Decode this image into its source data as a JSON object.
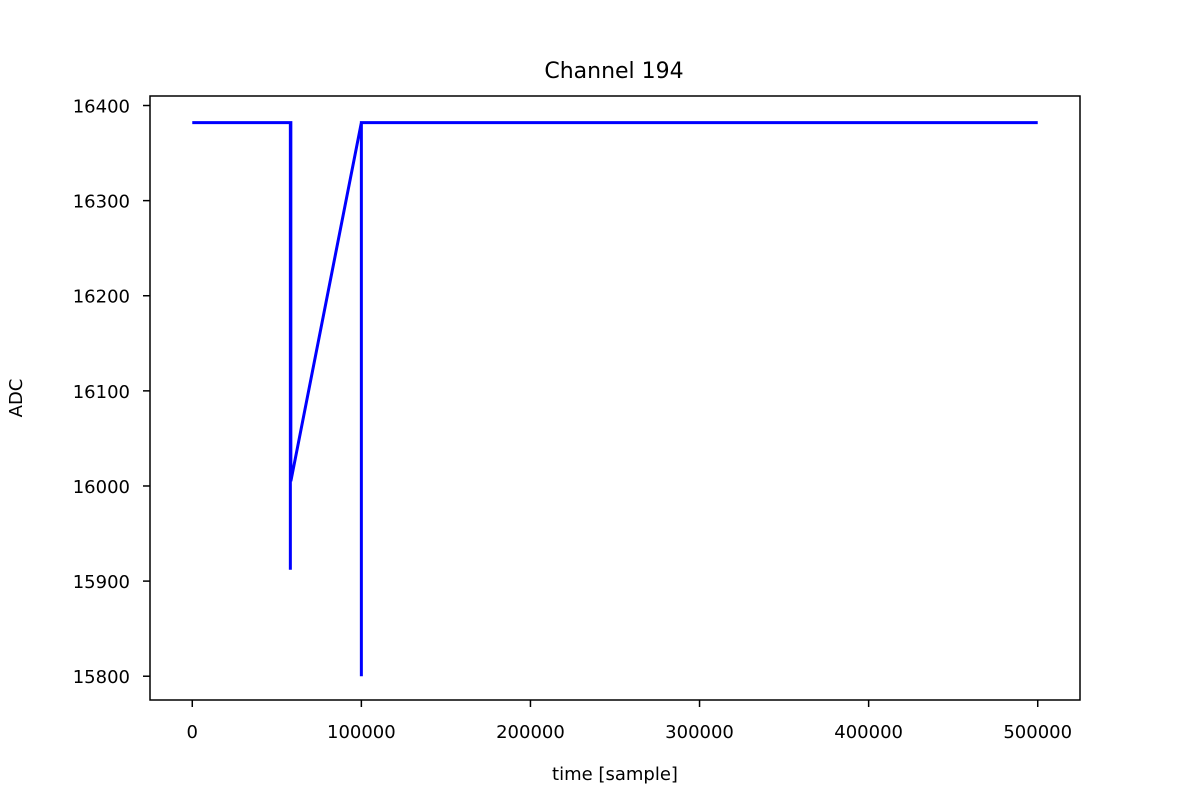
{
  "chart_data": {
    "type": "line",
    "title": "Channel 194",
    "xlabel": "time [sample]",
    "ylabel": "ADC",
    "xlim": [
      -25000,
      525000
    ],
    "ylim": [
      15775,
      16410
    ],
    "xticks": [
      0,
      100000,
      200000,
      300000,
      400000,
      500000
    ],
    "yticks": [
      15800,
      15900,
      16000,
      16100,
      16200,
      16300,
      16400
    ],
    "grid": false,
    "series": [
      {
        "color": "#0000ff",
        "x": [
          0,
          58000,
          58000,
          58000,
          58300,
          58300,
          100000,
          100000,
          100000,
          500000
        ],
        "y": [
          16382,
          16382,
          15912,
          16382,
          16382,
          16005,
          16382,
          15800,
          16382,
          16382
        ]
      }
    ]
  }
}
